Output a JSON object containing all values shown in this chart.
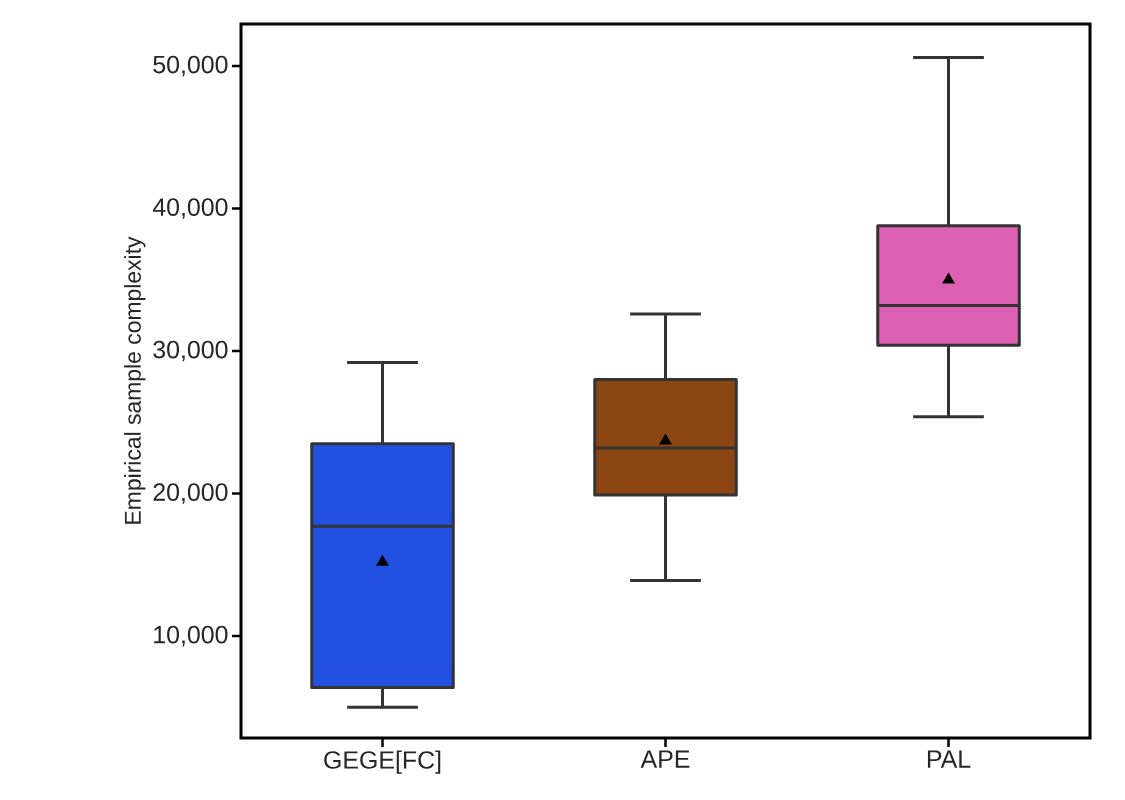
{
  "chart_data": {
    "type": "box",
    "ylabel": "Empirical sample complexity",
    "categories": [
      "GEGE[FC]",
      "APE",
      "PAL"
    ],
    "colors": [
      "#2250e0",
      "#8b4513",
      "#dc60b4"
    ],
    "boxes": [
      {
        "low": 5000,
        "q1": 6400,
        "median": 17700,
        "q3": 23500,
        "high": 29200,
        "mean": 15200
      },
      {
        "low": 13900,
        "q1": 19900,
        "median": 23200,
        "q3": 28000,
        "high": 32600,
        "mean": 23700
      },
      {
        "low": 25400,
        "q1": 30400,
        "median": 33200,
        "q3": 38800,
        "high": 50600,
        "mean": 35000
      }
    ],
    "ylim": [
      2850,
      52950
    ],
    "yticks": [
      {
        "value": 10000,
        "label": "10,000"
      },
      {
        "value": 20000,
        "label": "20,000"
      },
      {
        "value": 30000,
        "label": "30,000"
      },
      {
        "value": 40000,
        "label": "40,000"
      },
      {
        "value": 50000,
        "label": "50,000"
      }
    ],
    "marker": "triangle"
  }
}
